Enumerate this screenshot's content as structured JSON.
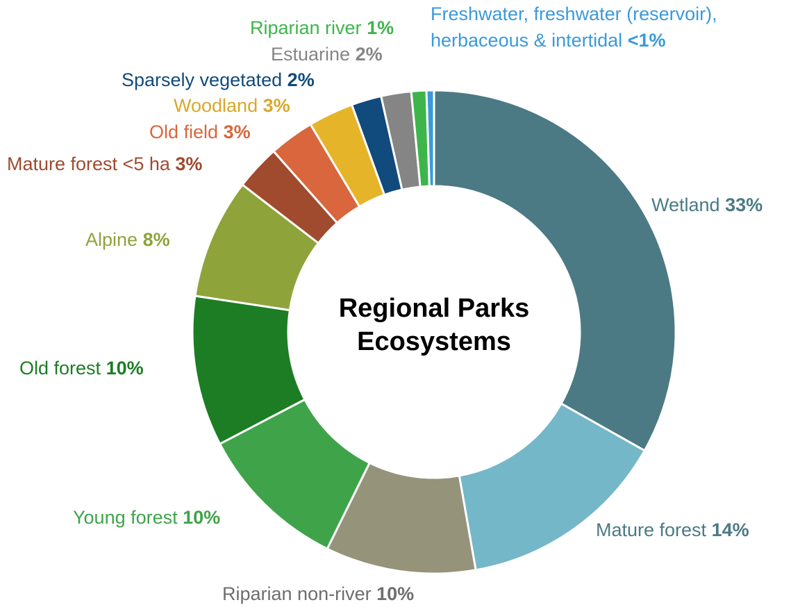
{
  "chart_data": {
    "type": "donut",
    "title": "Regional Parks Ecosystems",
    "categories": [
      "Wetland",
      "Mature forest",
      "Riparian non-river",
      "Young forest",
      "Old forest",
      "Alpine",
      "Mature forest <5 ha",
      "Old field",
      "Woodland",
      "Sparsely vegetated",
      "Estuarine",
      "Riparian river",
      "Freshwater, freshwater (reservoir), herbaceous & intertidal"
    ],
    "values": [
      33,
      14,
      10,
      10,
      10,
      8,
      3,
      3,
      3,
      2,
      2,
      1,
      0.5
    ],
    "value_labels": [
      "33%",
      "14%",
      "10%",
      "10%",
      "10%",
      "8%",
      "3%",
      "3%",
      "3%",
      "2%",
      "2%",
      "1%",
      "<1%"
    ],
    "colors": [
      "#4b7a84",
      "#74b7c8",
      "#96937b",
      "#3fa34a",
      "#1c7d24",
      "#8fa33b",
      "#a04a2e",
      "#d9663c",
      "#e6b429",
      "#114a7c",
      "#858585",
      "#3db54a",
      "#3a9ad9"
    ],
    "label_colors": [
      "#4b7a84",
      "#4b7a84",
      "#6e6e6e",
      "#3fa34a",
      "#1c7d24",
      "#8fa33b",
      "#a04a2e",
      "#d9663c",
      "#d9a82a",
      "#114a7c",
      "#858585",
      "#3db54a",
      "#3a9ad9"
    ]
  }
}
